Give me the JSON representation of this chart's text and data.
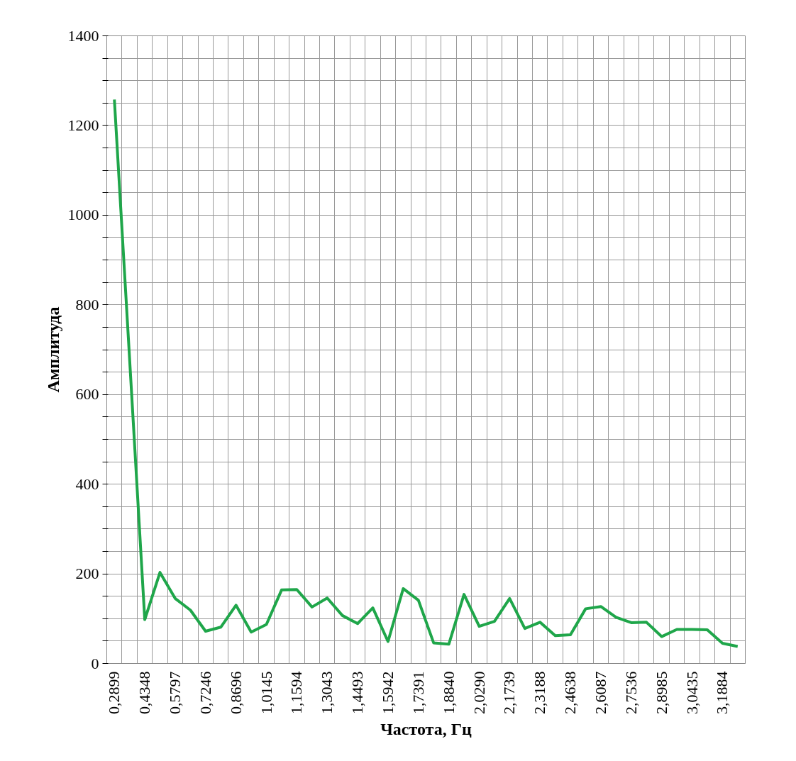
{
  "chart_data": {
    "type": "line",
    "xlabel": "Частота, Гц",
    "ylabel": "Амплитуда",
    "categories": [
      "0,2899",
      null,
      "0,4348",
      null,
      "0,5797",
      null,
      "0,7246",
      null,
      "0,8696",
      null,
      "1,0145",
      null,
      "1,1594",
      null,
      "1,3043",
      null,
      "1,4493",
      null,
      "1,5942",
      null,
      "1,7391",
      null,
      "1,8840",
      null,
      "2,0290",
      null,
      "2,1739",
      null,
      "2,3188",
      null,
      "2,4638",
      null,
      "2,6087",
      null,
      "2,7536",
      null,
      "2,8985",
      null,
      "3,0435",
      null,
      "3,1884",
      null
    ],
    "series": [
      {
        "color": "#1fa64a",
        "values": [
          1258,
          680,
          98,
          203,
          145,
          119,
          72,
          81,
          130,
          70,
          87,
          164,
          165,
          126,
          146,
          107,
          89,
          124,
          49,
          167,
          141,
          46,
          43,
          154,
          83,
          94,
          145,
          78,
          92,
          62,
          64,
          122,
          127,
          103,
          91,
          92,
          60,
          76,
          76,
          75,
          45,
          38
        ]
      }
    ],
    "ylim": [
      0,
      1400
    ],
    "yticks": [
      0,
      {
        "value": 50,
        "label": null
      },
      {
        "value": 100,
        "label": null
      },
      {
        "value": 150,
        "label": null
      },
      200,
      {
        "value": 250,
        "label": null
      },
      {
        "value": 300,
        "label": null
      },
      {
        "value": 350,
        "label": null
      },
      400,
      {
        "value": 450,
        "label": null
      },
      {
        "value": 500,
        "label": null
      },
      {
        "value": 550,
        "label": null
      },
      600,
      {
        "value": 650,
        "label": null
      },
      {
        "value": 700,
        "label": null
      },
      {
        "value": 750,
        "label": null
      },
      800,
      {
        "value": 850,
        "label": null
      },
      {
        "value": 900,
        "label": null
      },
      {
        "value": 950,
        "label": null
      },
      1000,
      {
        "value": 1050,
        "label": null
      },
      {
        "value": 1100,
        "label": null
      },
      {
        "value": 1150,
        "label": null
      },
      1200,
      {
        "value": 1250,
        "label": null
      },
      {
        "value": 1300,
        "label": null
      },
      {
        "value": 1350,
        "label": null
      },
      1400
    ],
    "grid": true,
    "marker": "none",
    "line_style": "solid"
  }
}
